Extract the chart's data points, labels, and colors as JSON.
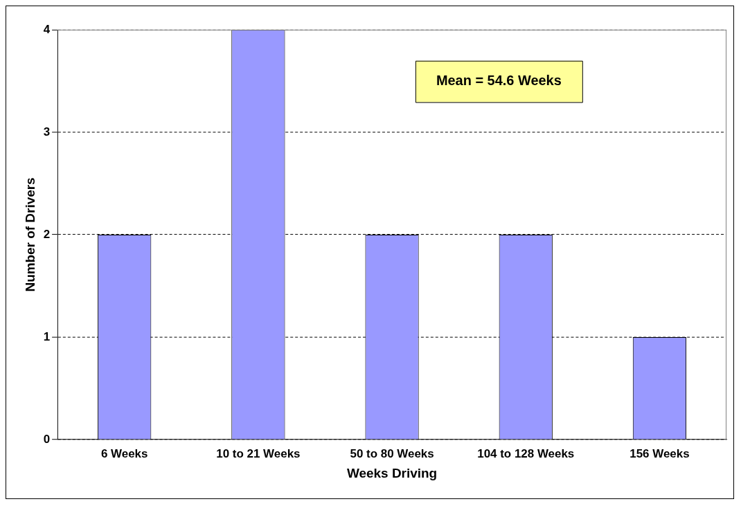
{
  "chart_data": {
    "type": "bar",
    "categories": [
      "6 Weeks",
      "10 to 21 Weeks",
      "50 to 80 Weeks",
      "104 to 128 Weeks",
      "156 Weeks"
    ],
    "values": [
      2,
      4,
      2,
      2,
      1
    ],
    "color": "#9999ff",
    "xlabel": "Weeks Driving",
    "ylabel": "Number of Drivers",
    "ylim": [
      0,
      4
    ],
    "yticks": [
      0,
      1,
      2,
      3,
      4
    ],
    "grid": "y",
    "annotations": [
      "Mean = 54.6 Weeks"
    ]
  }
}
